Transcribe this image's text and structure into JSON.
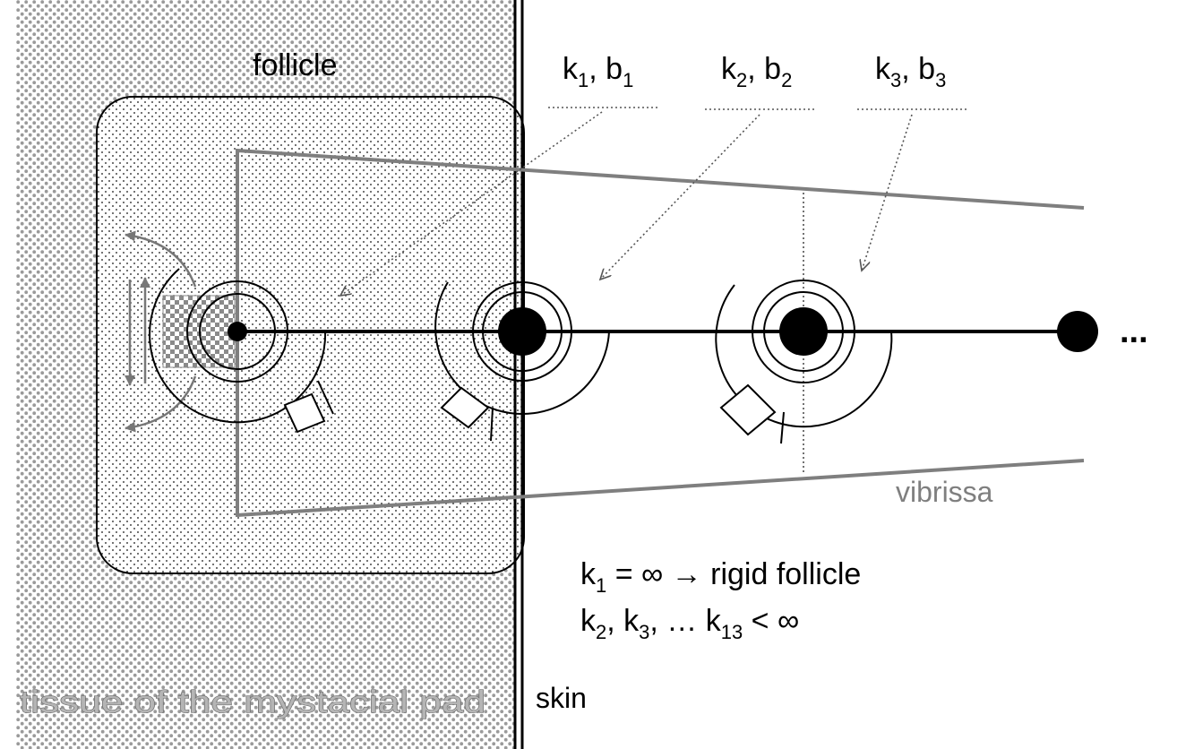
{
  "labels": {
    "follicle": "follicle",
    "k1b1": {
      "k": "k",
      "k_sub": "1",
      "sep": ", b",
      "b_sub": "1"
    },
    "k2b2": {
      "k": "k",
      "k_sub": "2",
      "sep": ", b",
      "b_sub": "2"
    },
    "k3b3": {
      "k": "k",
      "k_sub": "3",
      "sep": ", b",
      "b_sub": "3"
    },
    "ellipsis": "...",
    "vibrissa": "vibrissa",
    "skin": "skin",
    "tissue": "tissue of the mystacial pad",
    "eq1": {
      "k": "k",
      "sub": "1",
      "rest": " = ∞ → rigid follicle"
    },
    "eq2": {
      "k2": "k",
      "sub2": "2",
      "mid1": ", k",
      "sub3": "3",
      "mid2": ",  … k",
      "sub13": "13",
      "rest": " < ∞"
    }
  },
  "colors": {
    "vibrissa_outline": "#7f7f7f",
    "tissue_text": "#b5b5b5",
    "line": "#000000"
  }
}
